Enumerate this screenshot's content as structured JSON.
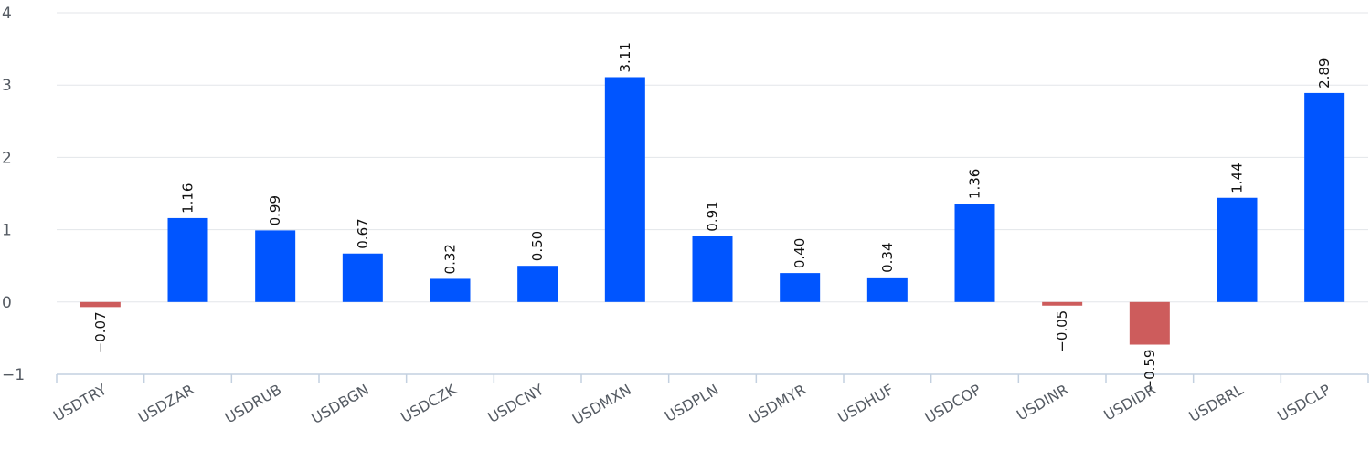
{
  "chart_data": {
    "type": "bar",
    "title": "",
    "xlabel": "",
    "ylabel": "",
    "categories": [
      "USDTRY",
      "USDZAR",
      "USDRUB",
      "USDBGN",
      "USDCZK",
      "USDCNY",
      "USDMXN",
      "USDPLN",
      "USDMYR",
      "USDHUF",
      "USDCOP",
      "USDINR",
      "USDIDR",
      "USDBRL",
      "USDCLP"
    ],
    "values": [
      -0.07,
      1.16,
      0.99,
      0.67,
      0.32,
      0.5,
      3.11,
      0.91,
      0.4,
      0.34,
      1.36,
      -0.05,
      -0.59,
      1.44,
      2.89
    ],
    "value_labels": [
      "−0.07",
      "1.16",
      "0.99",
      "0.67",
      "0.32",
      "0.50",
      "3.11",
      "0.91",
      "0.40",
      "0.34",
      "1.36",
      "−0.05",
      "−0.59",
      "1.44",
      "2.89"
    ],
    "ylim": [
      -1,
      4
    ],
    "yticks": [
      4,
      3,
      2,
      1,
      0,
      -1
    ],
    "ytick_labels": [
      "4",
      "3",
      "2",
      "1",
      "0",
      "−1"
    ],
    "grid": true,
    "legend": "none",
    "colors": {
      "positive": "#0055ff",
      "negative": "#cd5c5c"
    }
  }
}
